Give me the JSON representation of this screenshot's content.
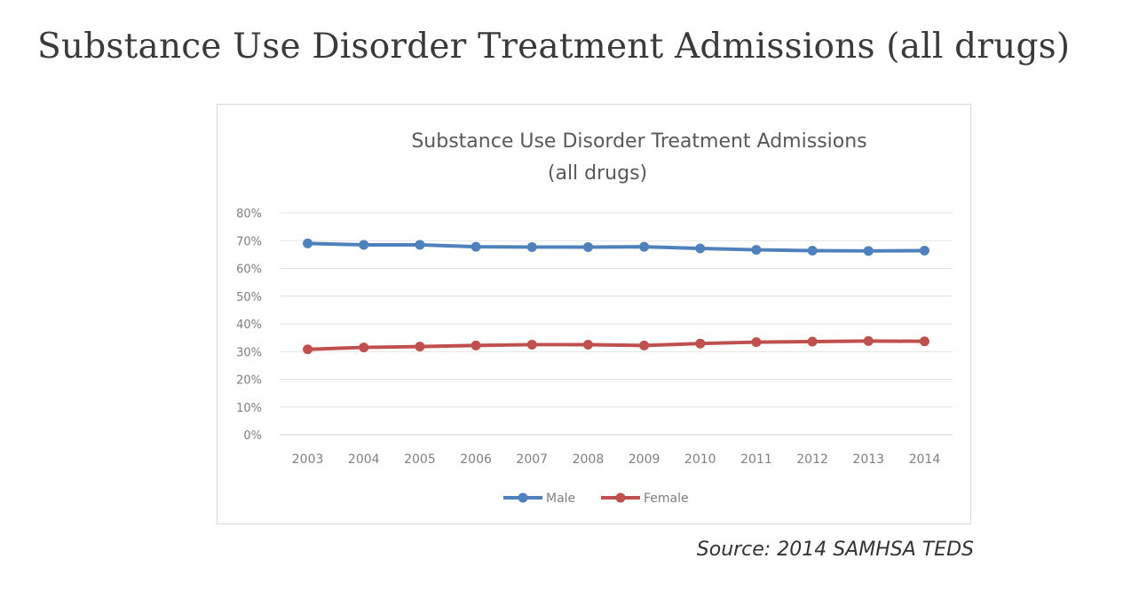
{
  "page": {
    "heading": "Substance Use Disorder Treatment Admissions (all drugs)",
    "source": "Source: 2014 SAMHSA TEDS"
  },
  "chart_data": {
    "type": "line",
    "title_lines": [
      "Substance Use Disorder Treatment Admissions",
      "(all drugs)"
    ],
    "xlabel": "",
    "ylabel": "",
    "categories": [
      "2003",
      "2004",
      "2005",
      "2006",
      "2007",
      "2008",
      "2009",
      "2010",
      "2011",
      "2012",
      "2013",
      "2014"
    ],
    "ylim": [
      0,
      80
    ],
    "yticks": [
      0,
      10,
      20,
      30,
      40,
      50,
      60,
      70,
      80
    ],
    "ytick_labels": [
      "0%",
      "10%",
      "20%",
      "30%",
      "40%",
      "50%",
      "60%",
      "70%",
      "80%"
    ],
    "grid": true,
    "legend_position": "bottom",
    "series": [
      {
        "name": "Male",
        "color": "#4f81bd",
        "values": [
          69,
          68.5,
          68.5,
          67.8,
          67.7,
          67.7,
          67.8,
          67.2,
          66.7,
          66.4,
          66.3,
          66.4
        ]
      },
      {
        "name": "Female",
        "color": "#c0504d",
        "values": [
          30.8,
          31.5,
          31.8,
          32.2,
          32.5,
          32.5,
          32.2,
          32.9,
          33.4,
          33.6,
          33.8,
          33.7
        ]
      }
    ]
  }
}
